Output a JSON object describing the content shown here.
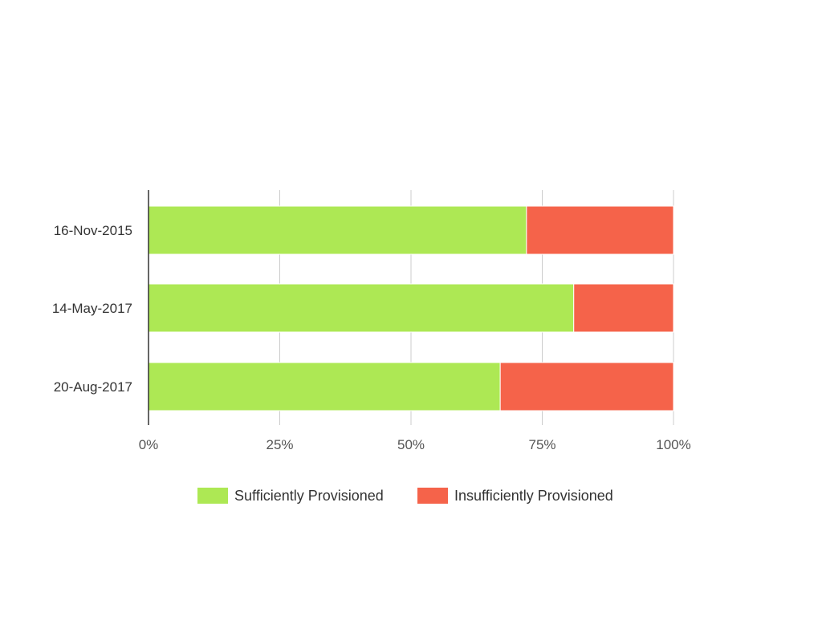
{
  "chart_data": {
    "type": "bar",
    "orientation": "horizontal",
    "stacked": "percent",
    "categories": [
      "16-Nov-2015",
      "14-May-2017",
      "20-Aug-2017"
    ],
    "series": [
      {
        "name": "Sufficiently Provisioned",
        "color": "#ade854",
        "values": [
          72,
          81,
          67
        ]
      },
      {
        "name": "Insufficiently Provisioned",
        "color": "#f5634a",
        "values": [
          28,
          19,
          33
        ]
      }
    ],
    "x_ticks": [
      "0%",
      "25%",
      "50%",
      "75%",
      "100%"
    ],
    "xlim": [
      0,
      100
    ],
    "grid": true,
    "legend_position": "bottom"
  },
  "colors": {
    "grid": "#cccccc",
    "axis": "#333333"
  }
}
